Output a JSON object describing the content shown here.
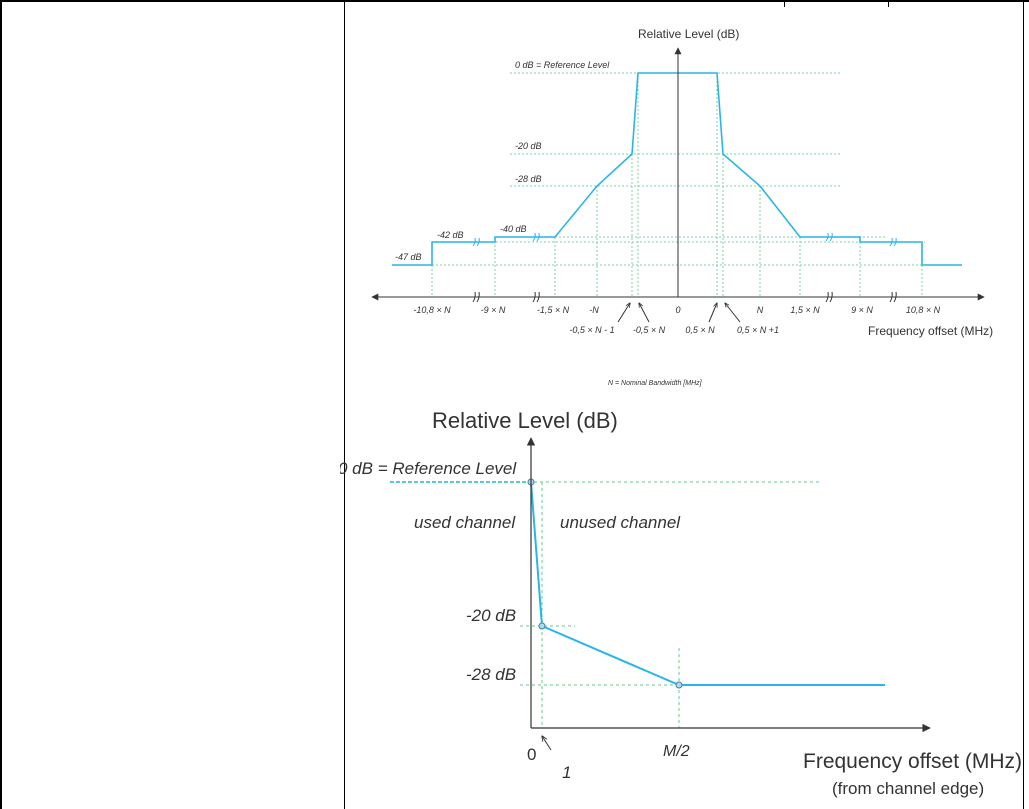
{
  "colors": {
    "mask": "#29b6e6",
    "grid": "#7fd3a0",
    "axis": "#333333",
    "table_border": "#000000"
  },
  "figure1": {
    "y_axis_title": "Relative Level (dB)",
    "x_axis_title": "Frequency offset (MHz)",
    "footnote": "N = Nominal Bandwidth [MHz]",
    "level_labels": {
      "ref": "0 dB = Reference Level",
      "m20": "-20 dB",
      "m28": "-28 dB",
      "m40": "-40 dB",
      "m42": "-42 dB",
      "m47": "-47 dB"
    },
    "x_labels_row1": {
      "neg108": "-10,8 × N",
      "neg9": "-9 × N",
      "neg15": "-1,5 × N",
      "negN": "-N",
      "zero": "0",
      "posN": "N",
      "pos15": "1,5 × N",
      "pos9": "9 × N",
      "pos108": "10,8 × N"
    },
    "x_labels_row2": {
      "neg05m1": "-0,5 × N - 1",
      "neg05": "-0,5 × N",
      "pos05": "0,5 × N",
      "pos05p1": "0,5 × N +1"
    }
  },
  "figure2": {
    "y_axis_title": "Relative Level (dB)",
    "x_axis_title": "Frequency offset (MHz)",
    "x_axis_subtitle": "(from channel edge)",
    "ref_label": "0 dB = Reference Level",
    "used_label": "used channel",
    "unused_label": "unused channel",
    "m20_label": "-20 dB",
    "m28_label": "-28 dB",
    "x_zero": "0",
    "x_one": "1",
    "x_half": "M/2"
  }
}
